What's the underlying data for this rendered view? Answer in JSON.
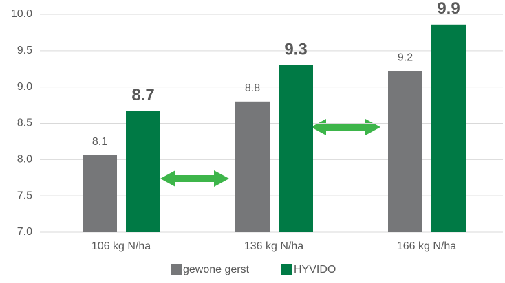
{
  "chart_data": {
    "type": "bar",
    "categories": [
      "106 kg N/ha",
      "136 kg N/ha",
      "166 kg N/ha"
    ],
    "series": [
      {
        "name": "gewone gerst",
        "color": "#767779",
        "values": [
          8.06,
          8.8,
          9.22
        ],
        "value_labels": [
          "8.1",
          "8.8",
          "9.2"
        ]
      },
      {
        "name": "HYVIDO",
        "color": "#007a45",
        "values": [
          8.67,
          9.3,
          9.86
        ],
        "value_labels": [
          "8.7",
          "9.3",
          "9.9"
        ]
      }
    ],
    "ylim": [
      7,
      10
    ],
    "yticks": [
      {
        "value": 7,
        "label": "7.0"
      },
      7.5,
      {
        "value": 8,
        "label": "8.0"
      },
      8.5,
      {
        "value": 9,
        "label": "9.0"
      },
      9.5,
      {
        "value": 10,
        "label": "10.0"
      }
    ],
    "grid": true,
    "legend": "bottom"
  }
}
